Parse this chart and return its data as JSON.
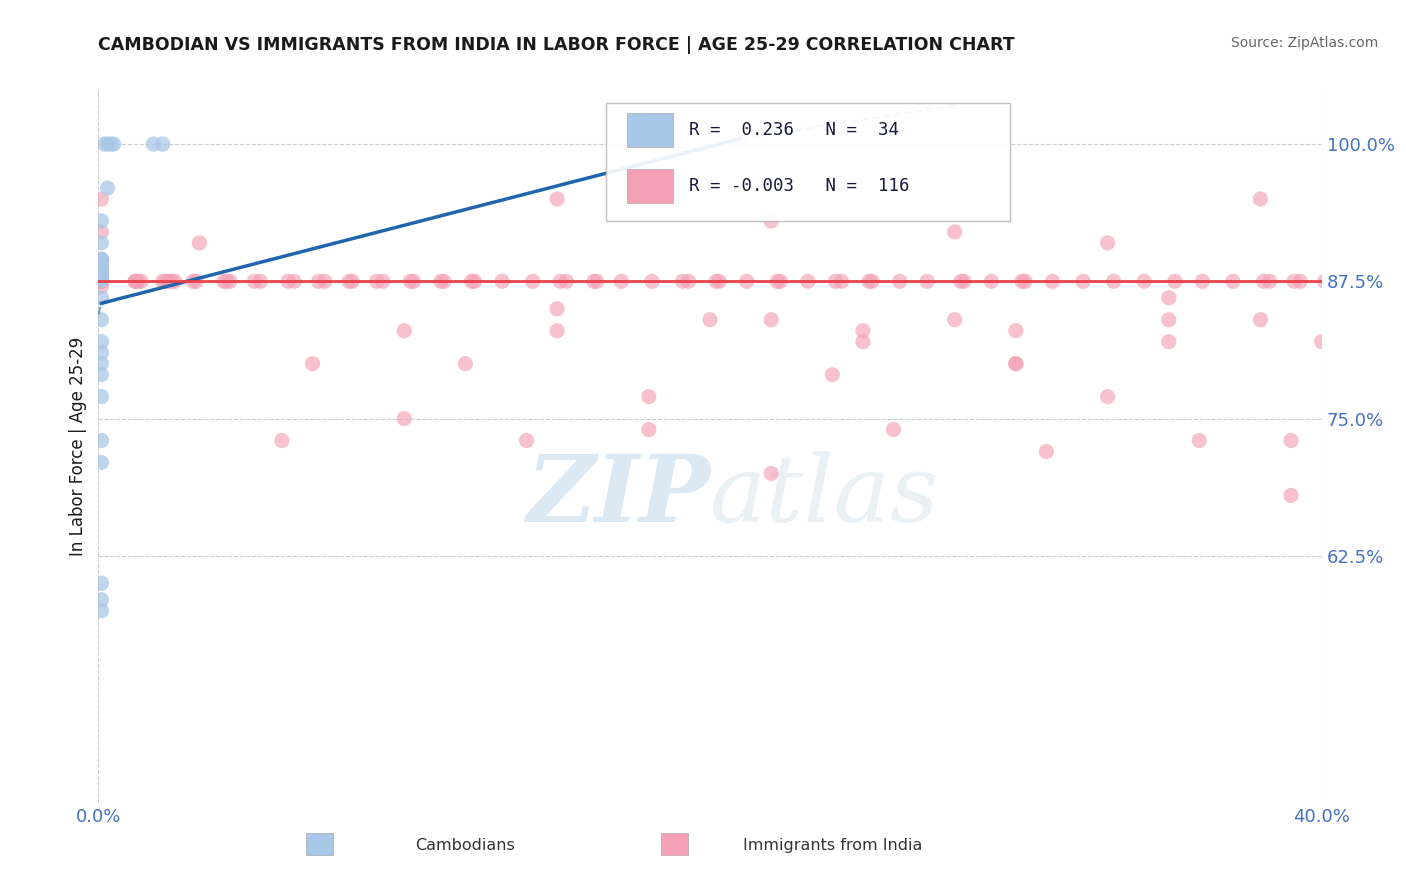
{
  "title": "CAMBODIAN VS IMMIGRANTS FROM INDIA IN LABOR FORCE | AGE 25-29 CORRELATION CHART",
  "source_text": "Source: ZipAtlas.com",
  "ylabel": "In Labor Force | Age 25-29",
  "x_min": 0.0,
  "x_max": 0.4,
  "y_min": 0.4,
  "y_max": 1.05,
  "x_tick_labels": [
    "0.0%",
    "40.0%"
  ],
  "y_ticks": [
    0.625,
    0.75,
    0.875,
    1.0
  ],
  "y_tick_labels": [
    "62.5%",
    "75.0%",
    "87.5%",
    "100.0%"
  ],
  "legend_items": [
    {
      "label": "Cambodians",
      "color": "#a8c8e8",
      "R": "0.236",
      "N": "34"
    },
    {
      "label": "Immigrants from India",
      "color": "#f4a0b5",
      "R": "-0.003",
      "N": "116"
    }
  ],
  "cambodian_x": [
    0.002,
    0.003,
    0.004,
    0.005,
    0.018,
    0.021,
    0.003,
    0.001,
    0.001,
    0.001,
    0.001,
    0.001,
    0.001,
    0.001,
    0.001,
    0.001,
    0.001,
    0.001,
    0.001,
    0.001,
    0.001,
    0.001,
    0.001,
    0.001,
    0.001,
    0.001,
    0.001,
    0.001,
    0.001,
    0.001,
    0.001,
    0.001,
    0.001,
    0.001
  ],
  "cambodian_y": [
    1.0,
    1.0,
    1.0,
    1.0,
    1.0,
    1.0,
    0.96,
    0.93,
    0.91,
    0.895,
    0.895,
    0.895,
    0.89,
    0.885,
    0.883,
    0.882,
    0.881,
    0.88,
    0.879,
    0.878,
    0.877,
    0.876,
    0.86,
    0.84,
    0.82,
    0.81,
    0.8,
    0.79,
    0.77,
    0.73,
    0.71,
    0.6,
    0.585,
    0.575
  ],
  "india_x": [
    0.001,
    0.001,
    0.001,
    0.001,
    0.001,
    0.001,
    0.001,
    0.001,
    0.001,
    0.001,
    0.012,
    0.013,
    0.014,
    0.012,
    0.022,
    0.023,
    0.025,
    0.024,
    0.021,
    0.032,
    0.033,
    0.031,
    0.041,
    0.042,
    0.043,
    0.051,
    0.053,
    0.062,
    0.064,
    0.072,
    0.074,
    0.082,
    0.083,
    0.091,
    0.093,
    0.102,
    0.103,
    0.112,
    0.113,
    0.122,
    0.123,
    0.132,
    0.142,
    0.151,
    0.153,
    0.162,
    0.163,
    0.171,
    0.181,
    0.191,
    0.193,
    0.202,
    0.203,
    0.212,
    0.222,
    0.223,
    0.232,
    0.241,
    0.243,
    0.252,
    0.253,
    0.262,
    0.271,
    0.282,
    0.283,
    0.292,
    0.302,
    0.303,
    0.312,
    0.322,
    0.332,
    0.342,
    0.352,
    0.361,
    0.371,
    0.381,
    0.383,
    0.391,
    0.393,
    0.401,
    0.15,
    0.22,
    0.28,
    0.33,
    0.38,
    0.15,
    0.22,
    0.28,
    0.35,
    0.38,
    0.25,
    0.3,
    0.35,
    0.4,
    0.1,
    0.15,
    0.2,
    0.25,
    0.3,
    0.35,
    0.07,
    0.12,
    0.18,
    0.24,
    0.3,
    0.36,
    0.1,
    0.18,
    0.26,
    0.33,
    0.39,
    0.06,
    0.14,
    0.22,
    0.31,
    0.39
  ],
  "india_y": [
    0.88,
    0.885,
    0.875,
    0.87,
    0.89,
    0.92,
    0.95,
    0.875,
    0.875,
    0.875,
    0.875,
    0.875,
    0.875,
    0.875,
    0.875,
    0.875,
    0.875,
    0.875,
    0.875,
    0.875,
    0.91,
    0.875,
    0.875,
    0.875,
    0.875,
    0.875,
    0.875,
    0.875,
    0.875,
    0.875,
    0.875,
    0.875,
    0.875,
    0.875,
    0.875,
    0.875,
    0.875,
    0.875,
    0.875,
    0.875,
    0.875,
    0.875,
    0.875,
    0.875,
    0.875,
    0.875,
    0.875,
    0.875,
    0.875,
    0.875,
    0.875,
    0.875,
    0.875,
    0.875,
    0.875,
    0.875,
    0.875,
    0.875,
    0.875,
    0.875,
    0.875,
    0.875,
    0.875,
    0.875,
    0.875,
    0.875,
    0.875,
    0.875,
    0.875,
    0.875,
    0.875,
    0.875,
    0.875,
    0.875,
    0.875,
    0.875,
    0.875,
    0.875,
    0.875,
    0.875,
    0.95,
    0.93,
    0.92,
    0.91,
    0.95,
    0.85,
    0.84,
    0.84,
    0.86,
    0.84,
    0.83,
    0.83,
    0.82,
    0.82,
    0.83,
    0.83,
    0.84,
    0.82,
    0.8,
    0.84,
    0.8,
    0.8,
    0.77,
    0.79,
    0.8,
    0.73,
    0.75,
    0.74,
    0.74,
    0.77,
    0.73,
    0.73,
    0.73,
    0.7,
    0.72,
    0.68
  ],
  "blue_line_x": [
    0.001,
    0.21
  ],
  "blue_line_y": [
    0.855,
    1.005
  ],
  "blue_line_color": "#2166ac",
  "blue_line_dash": [
    6,
    4
  ],
  "pink_line_y": 0.875,
  "pink_line_color": "#e8424a",
  "watermark_text": "ZIPatlas",
  "background_color": "#ffffff",
  "grid_color": "#cccccc",
  "title_color": "#1a1a1a",
  "axis_label_color": "#1a1a1a",
  "tick_label_color": "#4472c4",
  "source_color": "#666666"
}
